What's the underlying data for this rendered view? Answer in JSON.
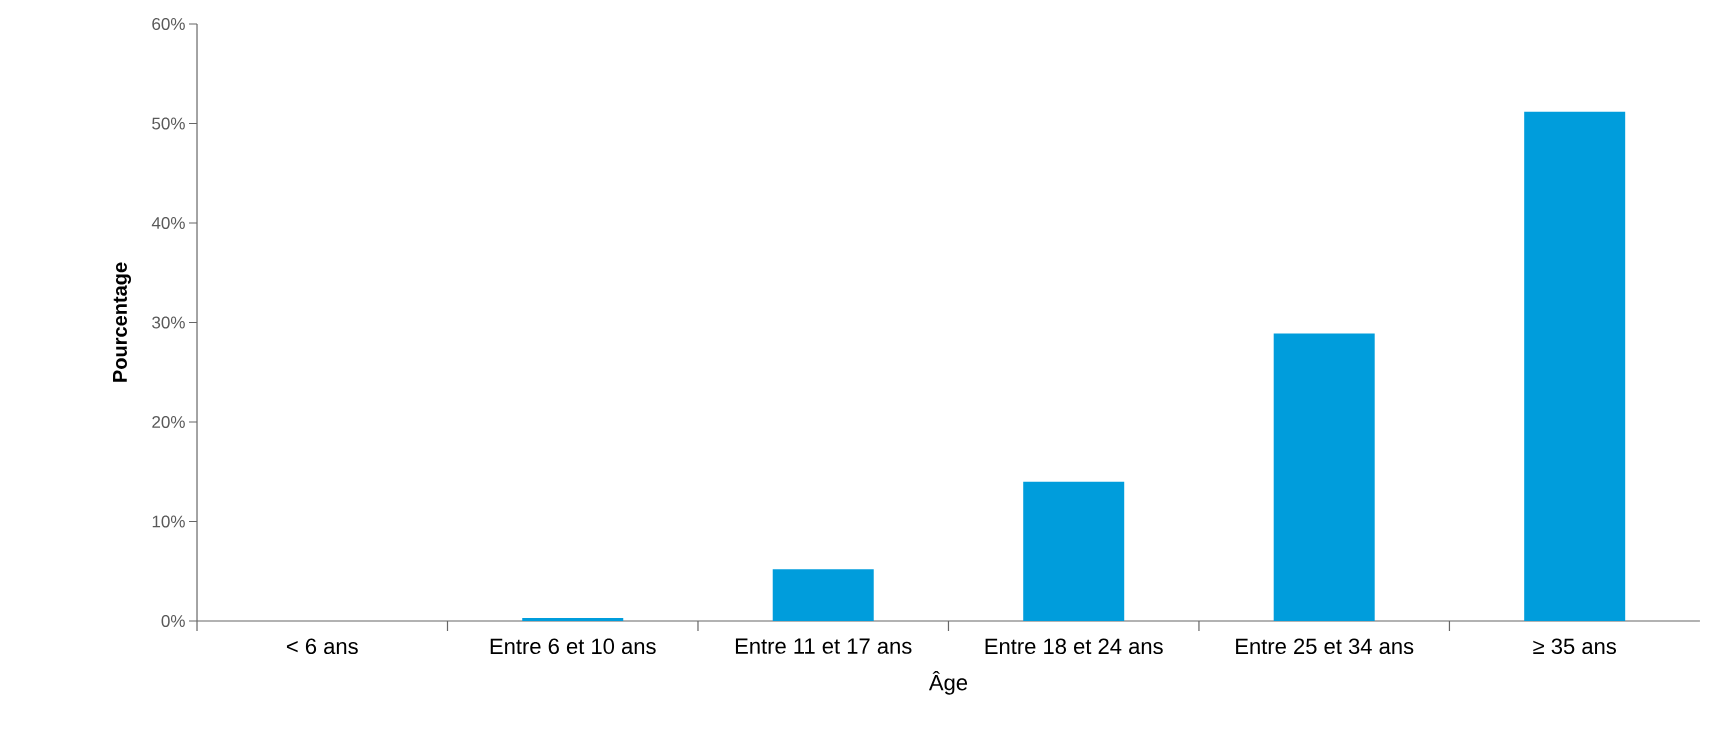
{
  "chart_data": {
    "type": "bar",
    "xlabel": "Âge",
    "ylabel": "**Pourcentage**",
    "categories": [
      "< 6 ans",
      "Entre 6 et 10 ans",
      "Entre 11 et 17 ans",
      "Entre 18 et 24 ans",
      "Entre 25 et 34 ans",
      "≥ 35 ans"
    ],
    "values": [
      0,
      0.3,
      5.2,
      14.0,
      28.9,
      51.2
    ],
    "color": "#009ddc",
    "ylim": [
      0,
      60
    ],
    "yticks": [
      {
        "value": 0,
        "label": "0%"
      },
      {
        "value": 10,
        "label": "10%"
      },
      {
        "value": 20,
        "label": "20%"
      },
      {
        "value": 30,
        "label": "30%"
      },
      {
        "value": 40,
        "label": "40%"
      },
      {
        "value": 50,
        "label": "50%"
      },
      {
        "value": 60,
        "label": "60%"
      }
    ],
    "grid": false
  }
}
